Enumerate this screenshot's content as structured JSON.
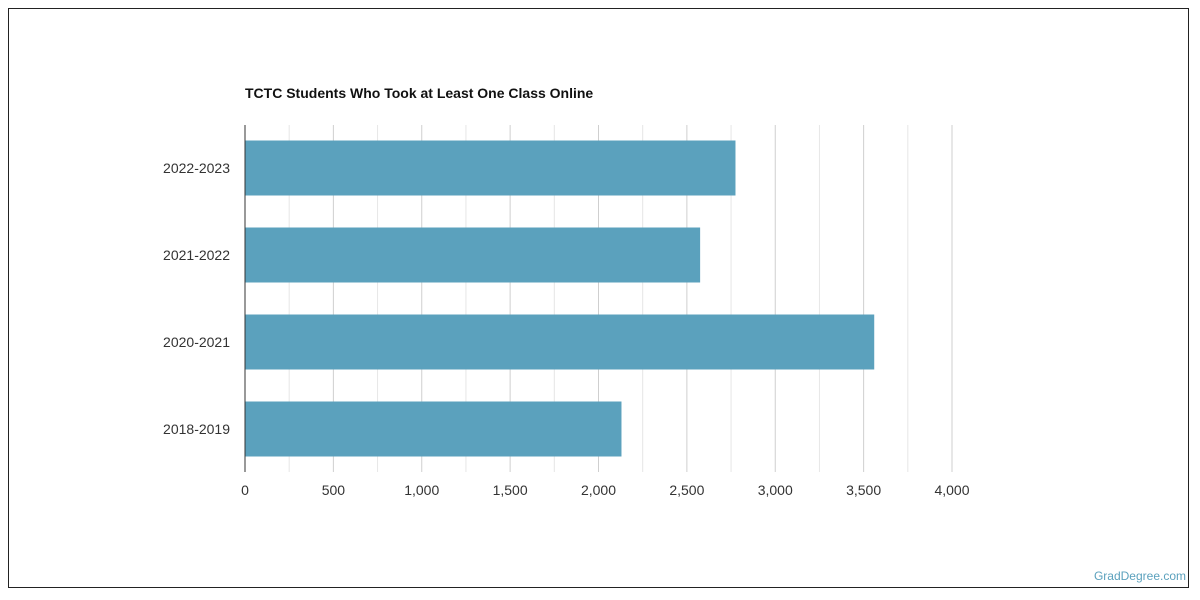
{
  "chart_data": {
    "type": "bar",
    "orientation": "horizontal",
    "title": "TCTC Students Who Took at Least One Class Online",
    "categories": [
      "2022-2023",
      "2021-2022",
      "2020-2021",
      "2018-2019"
    ],
    "values": [
      2775,
      2575,
      3560,
      2130
    ],
    "xlim": [
      0,
      4000
    ],
    "x_ticks": [
      "0",
      "500",
      "1,000",
      "1,500",
      "2,000",
      "2,500",
      "3,000",
      "3,500",
      "4,000"
    ],
    "xlabel": "",
    "ylabel": "",
    "grid": true,
    "bar_color": "#5ba1bd",
    "grid_color": "#d8d8d8"
  },
  "footer": {
    "watermark": "GradDegree.com"
  }
}
